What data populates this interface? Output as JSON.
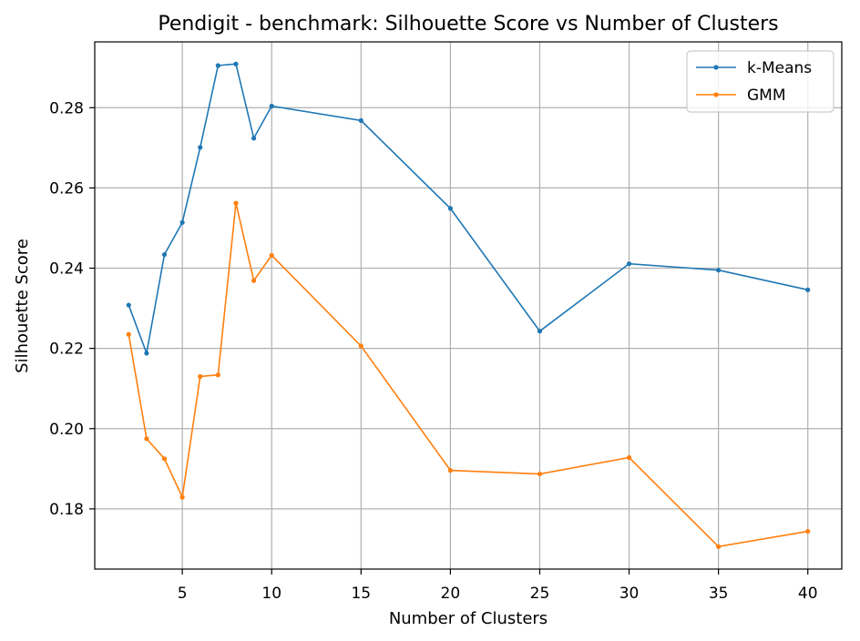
{
  "chart_data": {
    "type": "line",
    "title": "Pendigit - benchmark: Silhouette Score vs Number of Clusters",
    "xlabel": "Number of Clusters",
    "ylabel": "Silhouette Score",
    "xlim": [
      0.1,
      41.9
    ],
    "ylim": [
      0.165,
      0.2964
    ],
    "xticks": [
      5,
      10,
      15,
      20,
      25,
      30,
      35,
      40
    ],
    "yticks": [
      0.18,
      0.2,
      0.22,
      0.24,
      0.26,
      0.28
    ],
    "ytick_labels": [
      "0.18",
      "0.20",
      "0.22",
      "0.24",
      "0.26",
      "0.28"
    ],
    "grid": true,
    "legend_position": "top-right",
    "x": [
      2,
      3,
      4,
      5,
      6,
      7,
      8,
      9,
      10,
      15,
      20,
      25,
      30,
      35,
      40
    ],
    "series": [
      {
        "name": "k-Means",
        "color": "#1f77b4",
        "values": [
          0.2308,
          0.2188,
          0.2434,
          0.2514,
          0.2701,
          0.2905,
          0.2909,
          0.2724,
          0.2804,
          0.2768,
          0.2549,
          0.2243,
          0.2411,
          0.2395,
          0.2346
        ]
      },
      {
        "name": "GMM",
        "color": "#ff7f0e",
        "values": [
          0.2235,
          0.1975,
          0.1925,
          0.1829,
          0.213,
          0.2134,
          0.2562,
          0.2369,
          0.2432,
          0.2206,
          0.1896,
          0.1887,
          0.1928,
          0.1706,
          0.1744
        ]
      }
    ]
  }
}
